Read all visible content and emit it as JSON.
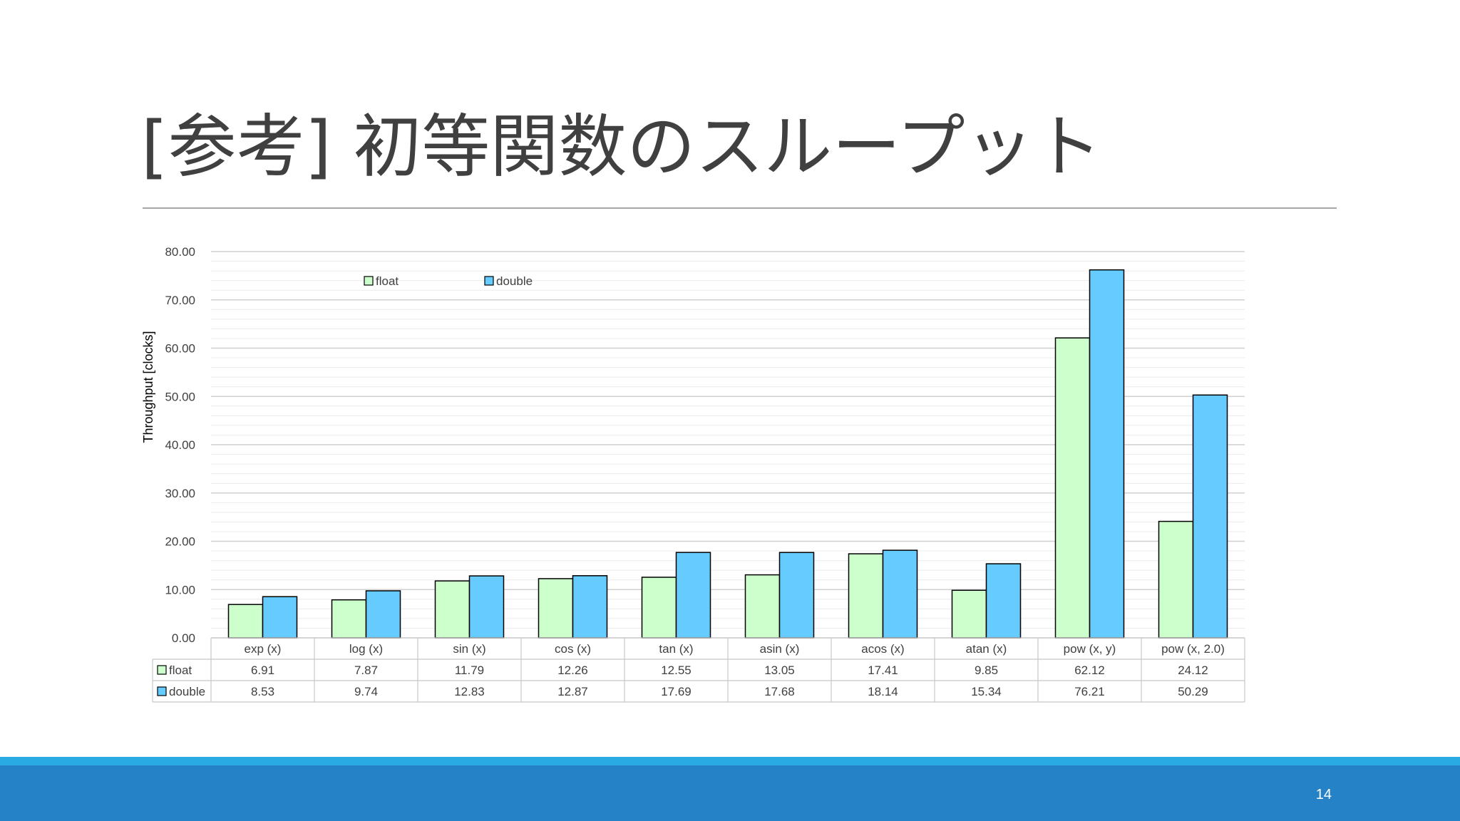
{
  "slide": {
    "title": "[参考] 初等関数のスループット",
    "page_number": "14"
  },
  "colors": {
    "float": "#ccffcc",
    "double": "#66ccff",
    "footer_band": "#2682c7",
    "footer_stripe": "#2aaae2"
  },
  "chart_data": {
    "type": "bar",
    "title": "",
    "xlabel": "",
    "ylabel": "Throughput [clocks]",
    "ylim": [
      0,
      80
    ],
    "y_major_step": 10,
    "y_minor_step": 2,
    "y_tick_labels": [
      "0.00",
      "10.00",
      "20.00",
      "30.00",
      "40.00",
      "50.00",
      "60.00",
      "70.00",
      "80.00"
    ],
    "grid": true,
    "legend_position": "top-left",
    "data_table": true,
    "categories": [
      "exp (x)",
      "log (x)",
      "sin (x)",
      "cos (x)",
      "tan (x)",
      "asin (x)",
      "acos (x)",
      "atan (x)",
      "pow (x, y)",
      "pow (x, 2.0)"
    ],
    "series": [
      {
        "name": "float",
        "color": "#ccffcc",
        "values": [
          6.91,
          7.87,
          11.79,
          12.26,
          12.55,
          13.05,
          17.41,
          9.85,
          62.12,
          24.12
        ],
        "labels": [
          "6.91",
          "7.87",
          "11.79",
          "12.26",
          "12.55",
          "13.05",
          "17.41",
          "9.85",
          "62.12",
          "24.12"
        ]
      },
      {
        "name": "double",
        "color": "#66ccff",
        "values": [
          8.53,
          9.74,
          12.83,
          12.87,
          17.69,
          17.68,
          18.14,
          15.34,
          76.21,
          50.29
        ],
        "labels": [
          "8.53",
          "9.74",
          "12.83",
          "12.87",
          "17.69",
          "17.68",
          "18.14",
          "15.34",
          "76.21",
          "50.29"
        ]
      }
    ]
  }
}
